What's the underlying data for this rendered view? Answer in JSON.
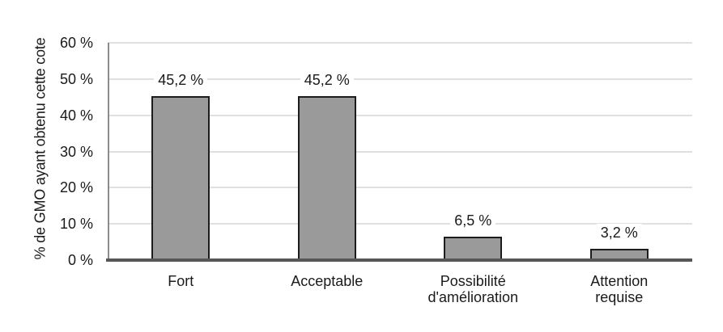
{
  "chart_data": {
    "type": "bar",
    "title": "",
    "xlabel": "",
    "ylabel": "% de GMO ayant obtenu cette cote",
    "categories": [
      "Fort",
      "Acceptable",
      "Possibilité\nd'amélioration",
      "Attention\nrequise"
    ],
    "values": [
      45.2,
      45.2,
      6.5,
      3.2
    ],
    "value_labels": [
      "45,2 %",
      "45,2 %",
      "6,5 %",
      "3,2 %"
    ],
    "ylim": [
      0,
      60
    ],
    "ytick_step": 10,
    "ytick_labels": [
      "0 %",
      "10 %",
      "20 %",
      "30 %",
      "40 %",
      "50 %",
      "60 %"
    ],
    "grid": true,
    "legend": false,
    "colors": {
      "bar_fill": "#9a9a9a",
      "bar_border": "#1c1c1c",
      "gridline": "#e0e0e0",
      "axis_line": "#8c8c8c",
      "baseline": "#575757",
      "text": "#1a1a1a",
      "background": "#ffffff"
    }
  }
}
